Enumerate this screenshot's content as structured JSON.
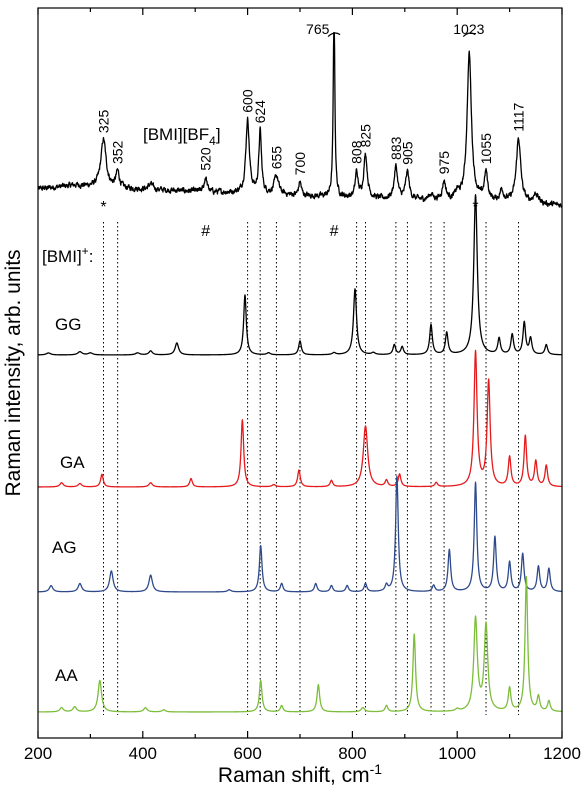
{
  "chart_data": {
    "type": "line",
    "xlabel": "Raman shift, cm",
    "xlabel_sup": "-1",
    "ylabel": "Raman intensity, arb. units",
    "xlim": [
      200,
      1200
    ],
    "x_ticks": [
      "200",
      "400",
      "600",
      "800",
      "1000",
      "1200"
    ],
    "x_minor_step": 100,
    "grid": false,
    "legend": "none",
    "sample_label": {
      "main": "[BMI][BF",
      "sub": "4",
      "end": "]"
    },
    "cation_label": {
      "main": "[BMI]",
      "sup": "+",
      "end": ":"
    },
    "markers": [
      {
        "text": "*",
        "x": 325
      },
      {
        "text": "#",
        "x": 520
      },
      {
        "text": "#",
        "x": 765
      },
      {
        "text": "*",
        "x": 1035
      }
    ],
    "guide_lines": [
      325,
      352,
      600,
      624,
      655,
      700,
      808,
      825,
      883,
      905,
      950,
      975,
      1055,
      1117
    ],
    "series": [
      {
        "name": "",
        "color": "#000000",
        "base": 0.0,
        "noise": 0.045,
        "background": [
          [
            200,
            0.5
          ],
          [
            270,
            0.58
          ],
          [
            330,
            0.52
          ],
          [
            500,
            0.45
          ],
          [
            700,
            0.35
          ],
          [
            900,
            0.26
          ],
          [
            1100,
            0.2
          ],
          [
            1200,
            0.14
          ]
        ],
        "peaks": [
          [
            325,
            1.05,
            6
          ],
          [
            352,
            0.35,
            4
          ],
          [
            415,
            0.12,
            5
          ],
          [
            520,
            0.32,
            3
          ],
          [
            600,
            1.6,
            4
          ],
          [
            624,
            1.35,
            3
          ],
          [
            655,
            0.4,
            5
          ],
          [
            700,
            0.3,
            3
          ],
          [
            765,
            4.2,
            1.8
          ],
          [
            808,
            0.55,
            3
          ],
          [
            825,
            0.95,
            4
          ],
          [
            883,
            0.7,
            4
          ],
          [
            905,
            0.6,
            4
          ],
          [
            950,
            0.12,
            5
          ],
          [
            975,
            0.4,
            4
          ],
          [
            1000,
            0.15,
            4
          ],
          [
            1023,
            3.2,
            5
          ],
          [
            1055,
            0.6,
            4
          ],
          [
            1085,
            0.25,
            4
          ],
          [
            1117,
            1.4,
            5
          ],
          [
            1150,
            0.2,
            6
          ]
        ],
        "cap": 3.9,
        "breaks": [
          765,
          1023
        ],
        "peak_labels": [
          {
            "text": "325",
            "x": 325
          },
          {
            "text": "352",
            "x": 352
          },
          {
            "text": "520",
            "x": 520
          },
          {
            "text": "600",
            "x": 600
          },
          {
            "text": "624",
            "x": 624
          },
          {
            "text": "655",
            "x": 655
          },
          {
            "text": "700",
            "x": 700
          },
          {
            "text": "765",
            "x": 765
          },
          {
            "text": "808",
            "x": 808
          },
          {
            "text": "825",
            "x": 825
          },
          {
            "text": "883",
            "x": 883
          },
          {
            "text": "905",
            "x": 905
          },
          {
            "text": "975",
            "x": 975
          },
          {
            "text": "1023",
            "x": 1023
          },
          {
            "text": "1055",
            "x": 1055
          },
          {
            "text": "1117",
            "x": 1117
          }
        ]
      },
      {
        "name": "GG",
        "color": "#000000",
        "base": 0.0,
        "noise": 0,
        "background": [],
        "peaks": [
          [
            220,
            0.05,
            5
          ],
          [
            280,
            0.08,
            5
          ],
          [
            300,
            0.05,
            5
          ],
          [
            390,
            0.05,
            5
          ],
          [
            415,
            0.1,
            4
          ],
          [
            465,
            0.3,
            4
          ],
          [
            595,
            1.5,
            3
          ],
          [
            640,
            0.05,
            4
          ],
          [
            700,
            0.35,
            3
          ],
          [
            765,
            0.05,
            4
          ],
          [
            805,
            1.65,
            3.5
          ],
          [
            840,
            0.05,
            4
          ],
          [
            880,
            0.25,
            3
          ],
          [
            895,
            0.2,
            3
          ],
          [
            950,
            0.75,
            3
          ],
          [
            980,
            0.55,
            3
          ],
          [
            1035,
            4.0,
            4
          ],
          [
            1080,
            0.4,
            3
          ],
          [
            1105,
            0.5,
            3
          ],
          [
            1128,
            0.8,
            3
          ],
          [
            1140,
            0.4,
            3
          ],
          [
            1170,
            0.25,
            3
          ]
        ],
        "cap": 99,
        "breaks": [],
        "peak_labels": []
      },
      {
        "name": "GA",
        "color": "#e41a1c",
        "base": 0.0,
        "noise": 0,
        "background": [],
        "peaks": [
          [
            245,
            0.1,
            4
          ],
          [
            280,
            0.08,
            4
          ],
          [
            322,
            0.3,
            3
          ],
          [
            415,
            0.1,
            4
          ],
          [
            492,
            0.2,
            3
          ],
          [
            590,
            1.6,
            3
          ],
          [
            650,
            0.05,
            4
          ],
          [
            698,
            0.4,
            3
          ],
          [
            760,
            0.15,
            3
          ],
          [
            825,
            1.45,
            5
          ],
          [
            865,
            0.15,
            3
          ],
          [
            890,
            0.3,
            3
          ],
          [
            960,
            0.1,
            3
          ],
          [
            1035,
            3.2,
            3.5
          ],
          [
            1060,
            2.5,
            3.5
          ],
          [
            1100,
            0.7,
            3
          ],
          [
            1130,
            1.2,
            3
          ],
          [
            1150,
            0.6,
            3
          ],
          [
            1170,
            0.5,
            3
          ]
        ],
        "cap": 99,
        "breaks": [],
        "peak_labels": []
      },
      {
        "name": "AG",
        "color": "#2e4a8c",
        "base": 0.0,
        "noise": 0,
        "background": [],
        "peaks": [
          [
            225,
            0.15,
            4
          ],
          [
            280,
            0.2,
            4
          ],
          [
            340,
            0.5,
            4
          ],
          [
            415,
            0.4,
            4
          ],
          [
            565,
            0.05,
            4
          ],
          [
            625,
            1.1,
            3
          ],
          [
            665,
            0.2,
            3
          ],
          [
            730,
            0.2,
            3
          ],
          [
            760,
            0.15,
            3
          ],
          [
            790,
            0.15,
            3
          ],
          [
            825,
            0.2,
            3
          ],
          [
            865,
            0.15,
            3
          ],
          [
            885,
            2.75,
            3
          ],
          [
            955,
            0.15,
            3
          ],
          [
            985,
            1.0,
            3
          ],
          [
            1035,
            2.6,
            3
          ],
          [
            1072,
            1.3,
            3
          ],
          [
            1100,
            0.7,
            3
          ],
          [
            1125,
            0.9,
            3
          ],
          [
            1155,
            0.6,
            3
          ],
          [
            1175,
            0.55,
            3
          ]
        ],
        "cap": 99,
        "breaks": [],
        "peak_labels": []
      },
      {
        "name": "AA",
        "color": "#7cbd3a",
        "base": 0.0,
        "noise": 0,
        "background": [],
        "peaks": [
          [
            245,
            0.1,
            4
          ],
          [
            270,
            0.12,
            4
          ],
          [
            318,
            0.75,
            4
          ],
          [
            405,
            0.1,
            4
          ],
          [
            440,
            0.05,
            4
          ],
          [
            625,
            0.75,
            3
          ],
          [
            665,
            0.15,
            3
          ],
          [
            735,
            0.65,
            3
          ],
          [
            820,
            0.1,
            4
          ],
          [
            865,
            0.15,
            3
          ],
          [
            918,
            1.85,
            3
          ],
          [
            1000,
            0.05,
            4
          ],
          [
            1035,
            2.2,
            4
          ],
          [
            1055,
            2.05,
            4
          ],
          [
            1100,
            0.55,
            3
          ],
          [
            1132,
            3.2,
            3
          ],
          [
            1155,
            0.35,
            3
          ],
          [
            1175,
            0.25,
            3
          ]
        ],
        "cap": 99,
        "breaks": [],
        "peak_labels": []
      }
    ]
  }
}
